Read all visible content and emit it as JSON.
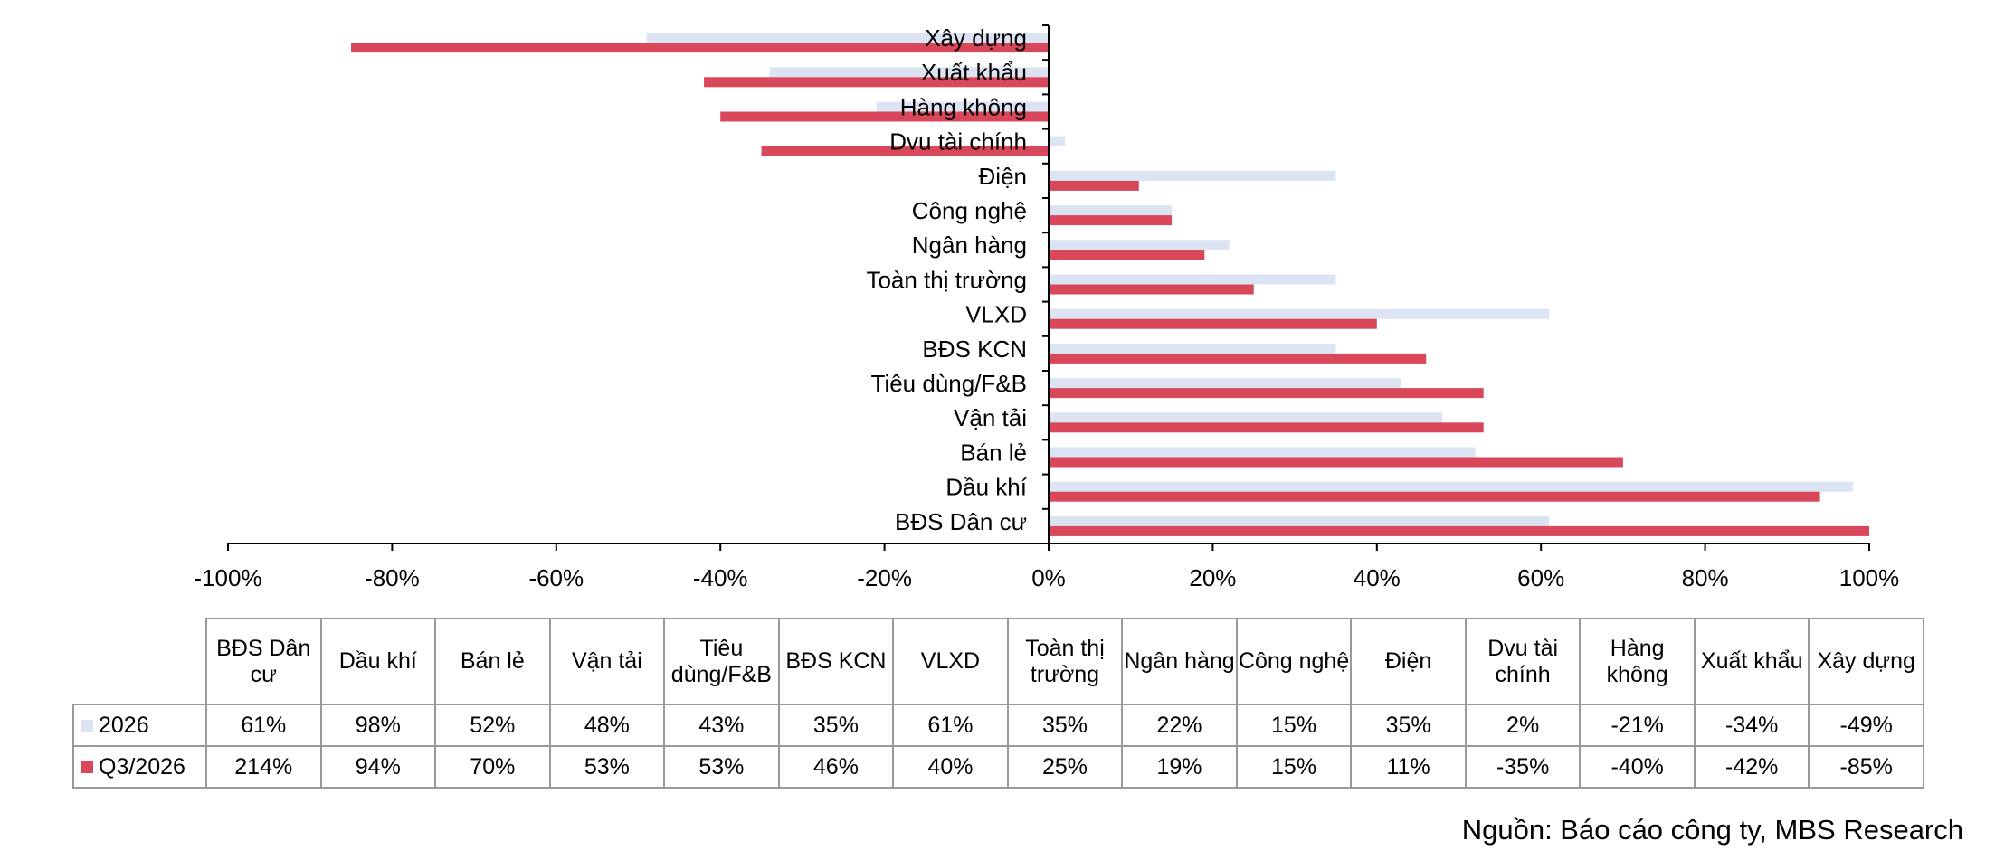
{
  "chart_data": {
    "type": "bar",
    "orientation": "horizontal",
    "categories": [
      "BĐS Dân cư",
      "Dầu khí",
      "Bán lẻ",
      "Vận tải",
      "Tiêu dùng/F&B",
      "BĐS KCN",
      "VLXD",
      "Toàn thị trường",
      "Ngân hàng",
      "Công nghệ",
      "Điện",
      "Dvu tài chính",
      "Hàng không",
      "Xuất khẩu",
      "Xây dựng"
    ],
    "series": [
      {
        "name": "2026",
        "color": "#dce3f3",
        "values": [
          61,
          98,
          52,
          48,
          43,
          35,
          61,
          35,
          22,
          15,
          35,
          2,
          -21,
          -34,
          -49
        ],
        "value_labels": [
          "61%",
          "98%",
          "52%",
          "48%",
          "43%",
          "35%",
          "61%",
          "35%",
          "22%",
          "15%",
          "35%",
          "2%",
          "-21%",
          "-34%",
          "-49%"
        ]
      },
      {
        "name": "Q3/2026",
        "color": "#d9475a",
        "values": [
          214,
          94,
          70,
          53,
          53,
          46,
          40,
          25,
          19,
          15,
          11,
          -35,
          -40,
          -42,
          -85
        ],
        "value_labels": [
          "214%",
          "94%",
          "70%",
          "53%",
          "53%",
          "46%",
          "40%",
          "25%",
          "19%",
          "15%",
          "11%",
          "-35%",
          "-40%",
          "-42%",
          "-85%"
        ]
      }
    ],
    "xlim": [
      -100,
      100
    ],
    "xticks": [
      {
        "value": -100,
        "label": "-100%"
      },
      {
        "value": -80,
        "label": "-80%"
      },
      {
        "value": -60,
        "label": "-60%"
      },
      {
        "value": -40,
        "label": "-40%"
      },
      {
        "value": -20,
        "label": "-20%"
      },
      {
        "value": 0,
        "label": "0%"
      },
      {
        "value": 20,
        "label": "20%"
      },
      {
        "value": 40,
        "label": "40%"
      },
      {
        "value": 60,
        "label": "60%"
      },
      {
        "value": 80,
        "label": "80%"
      },
      {
        "value": 100,
        "label": "100%"
      }
    ],
    "source": "Nguồn: Báo cáo công ty, MBS Research"
  }
}
